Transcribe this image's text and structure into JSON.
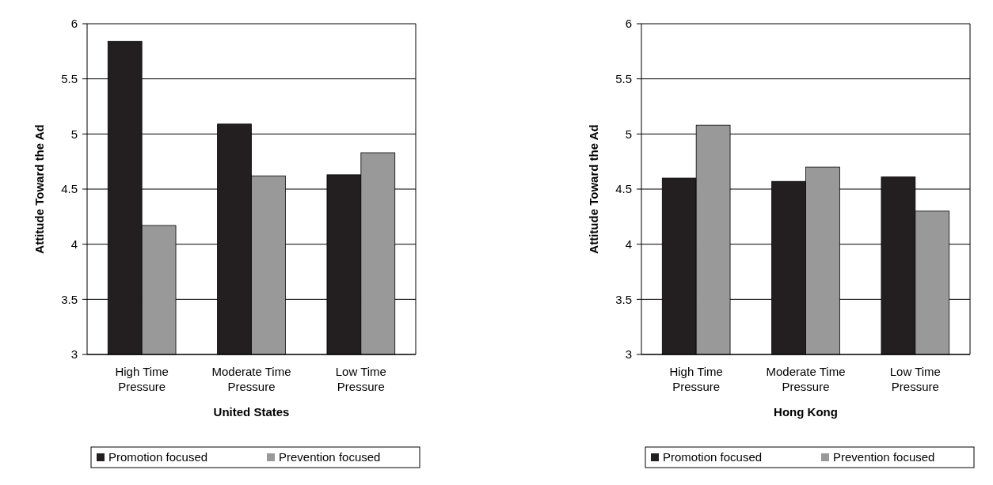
{
  "chart_data": [
    {
      "type": "bar",
      "xlabel": "United States",
      "ylabel": "Attitude Toward the Ad",
      "categories": [
        "High Time Pressure",
        "Moderate Time Pressure",
        "Low Time Pressure"
      ],
      "series": [
        {
          "name": "Promotion focused",
          "color": "#231f20",
          "values": [
            5.84,
            5.09,
            4.63
          ]
        },
        {
          "name": "Prevention focused",
          "color": "#999999",
          "values": [
            4.17,
            4.62,
            4.83
          ]
        }
      ],
      "ylim": [
        3,
        6
      ],
      "yticks": [
        3,
        3.5,
        4,
        4.5,
        5,
        5.5,
        6
      ],
      "grid": "y",
      "legend": "bottom"
    },
    {
      "type": "bar",
      "xlabel": "Hong Kong",
      "ylabel": "Attitude Toward the Ad",
      "categories": [
        "High Time Pressure",
        "Moderate Time Pressure",
        "Low Time Pressure"
      ],
      "series": [
        {
          "name": "Promotion focused",
          "color": "#231f20",
          "values": [
            4.6,
            4.57,
            4.61
          ]
        },
        {
          "name": "Prevention focused",
          "color": "#999999",
          "values": [
            5.08,
            4.7,
            4.3
          ]
        }
      ],
      "ylim": [
        3,
        6
      ],
      "yticks": [
        3,
        3.5,
        4,
        4.5,
        5,
        5.5,
        6
      ],
      "grid": "y",
      "legend": "bottom"
    }
  ]
}
